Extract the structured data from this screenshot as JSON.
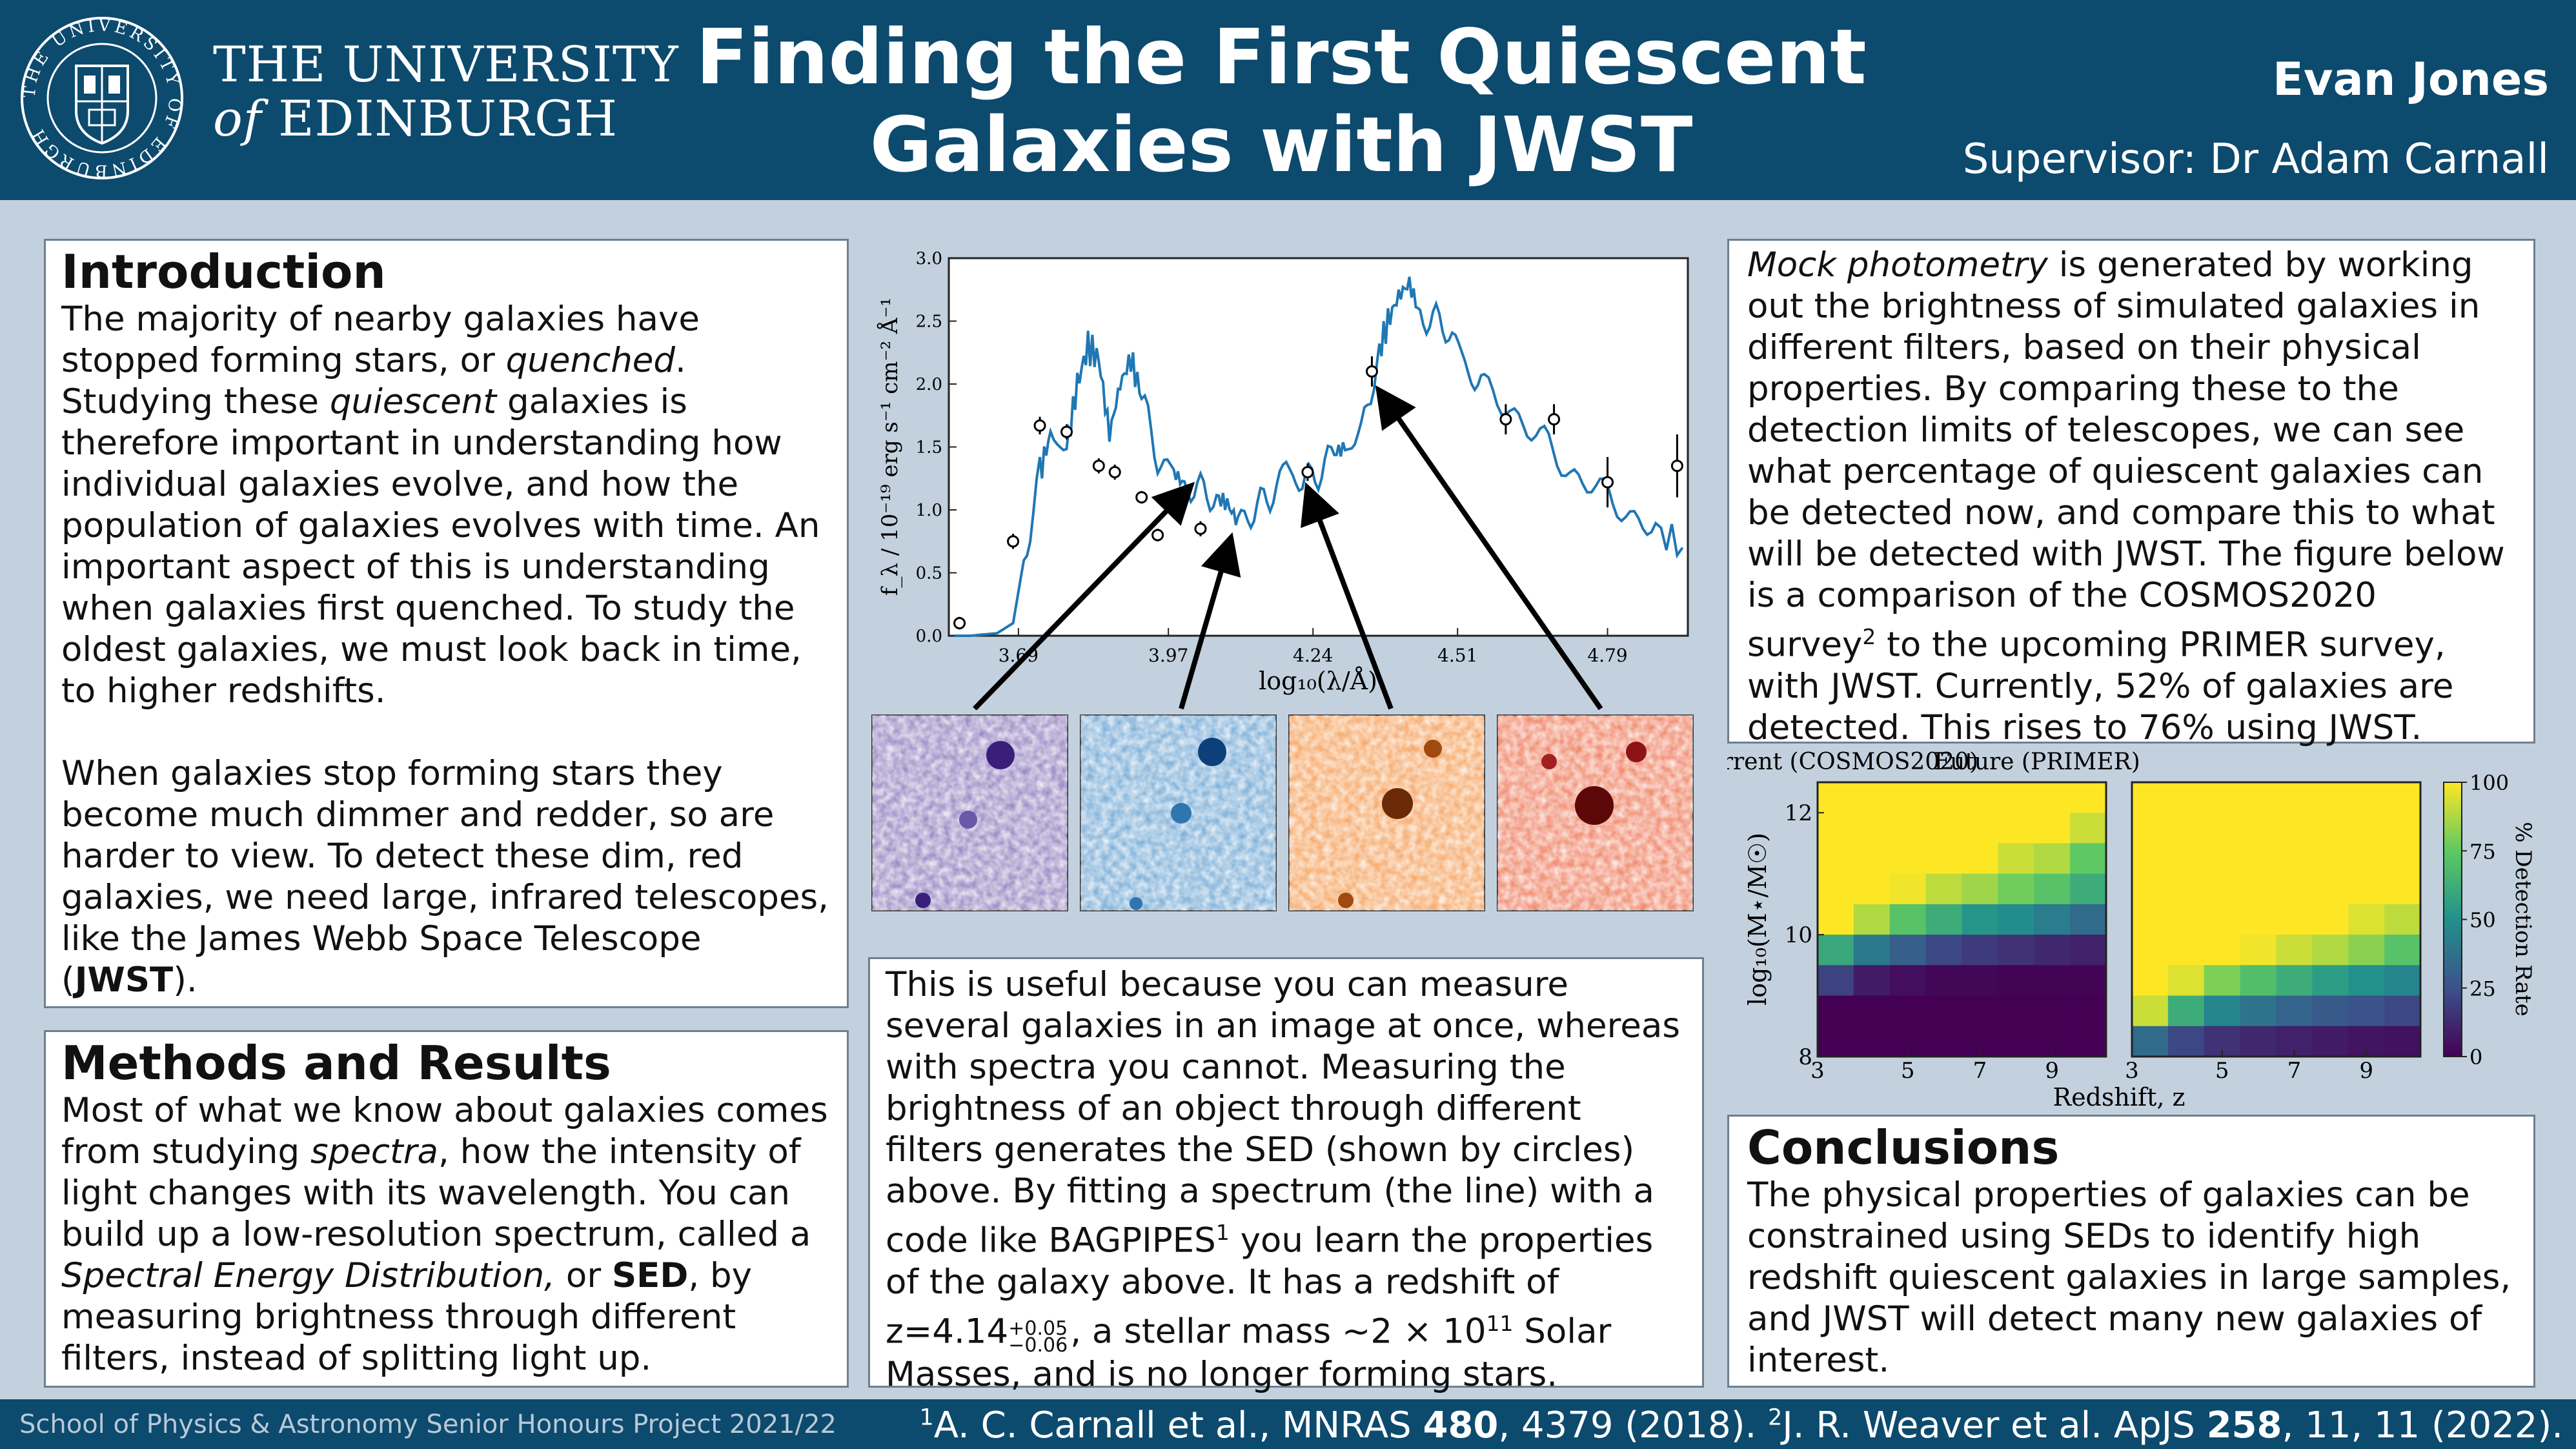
{
  "header": {
    "university_line1": "THE UNIVERSITY",
    "university_of": "of",
    "university_line2": "EDINBURGH",
    "crest_ring_text": "THE UNIVERSITY OF EDINBURGH",
    "title_line1": "Finding the First Quiescent",
    "title_line2": "Galaxies with JWST",
    "author": "Evan Jones",
    "supervisor": "Supervisor: Dr Adam Carnall"
  },
  "intro": {
    "heading": "Introduction",
    "p1_a": "The majority of nearby galaxies have stopped forming stars, or ",
    "p1_em1": "quenched",
    "p1_b": ". Studying these ",
    "p1_em2": "quiescent",
    "p1_c": " galaxies is therefore important in understanding how individual galaxies evolve, and how the population of galaxies evolves with time. An important aspect of this is understanding when galaxies first quenched. To study the oldest galaxies, we must look back in time, to higher redshifts.",
    "p2_a": "When galaxies stop forming stars they become much dimmer and redder, so are harder to view. To detect these dim, red galaxies, we need large, infrared telescopes, like the James Webb Space Telescope (",
    "p2_strong": "JWST",
    "p2_b": ")."
  },
  "methods": {
    "heading": "Methods and Results",
    "a": "Most of what we know about galaxies comes from studying ",
    "em1": "spectra",
    "b": ", how the intensity of light changes with its wavelength. You can build up a low-resolution spectrum, called a ",
    "em2": "Spectral Energy Distribution,",
    "c": " or ",
    "strong": "SED",
    "d": ", by measuring brightness through different filters, instead of splitting light up."
  },
  "useful": {
    "a": "This is useful because you can measure several galaxies in an image at once, whereas with spectra you cannot. Measuring the brightness of an object through different filters generates the SED (shown by circles) above. By fitting a spectrum (the line) with a code like BAGPIPES",
    "sup1": "1",
    "b": " you learn the properties of the galaxy above. It has a redshift of z=4.14",
    "z_up": "+0.05",
    "z_dn": "−0.06",
    "c": ", a stellar mass ∼2 × 10",
    "mass_exp": "11",
    "d": " Solar Masses, and is no longer forming stars."
  },
  "mock": {
    "em": "Mock photometry",
    "a": " is generated by working out the brightness of simulated galaxies in different filters, based on their physical properties. By comparing these to the detection limits of telescopes, we can see what percentage of quiescent galaxies can be detected now, and compare this to what will be detected with JWST. The figure below is a comparison of the COSMOS2020 survey",
    "sup2": "2",
    "b": " to the upcoming PRIMER survey, with JWST. Currently, 52% of galaxies are detected. This rises to 76% using JWST."
  },
  "conclusions": {
    "heading": "Conclusions",
    "text": "The physical properties of galaxies can be constrained using SEDs to identify high redshift quiescent galaxies in large samples, and JWST will detect many new galaxies of interest."
  },
  "footer": {
    "left": "School of Physics & Astronomy Senior Honours Project 2021/22",
    "ref1_sup": "1",
    "ref1_a": "A. C. Carnall et al., MNRAS ",
    "ref1_vol": "480",
    "ref1_b": ", 4379 (2018). ",
    "ref2_sup": "2",
    "ref2_a": "J. R. Weaver et al. ApJS ",
    "ref2_vol": "258",
    "ref2_b": ", 11, 11 (2022)."
  },
  "chart_data": [
    {
      "type": "line",
      "xlabel": "log₁₀(λ/Å)",
      "ylabel": "f_λ / 10⁻¹⁹ erg s⁻¹ cm⁻² Å⁻¹",
      "xlim": [
        3.56,
        4.94
      ],
      "ylim": [
        0.0,
        3.0
      ],
      "xticks": [
        "3.69",
        "3.97",
        "4.24",
        "4.51",
        "4.79"
      ],
      "yticks": [
        "0.0",
        "0.5",
        "1.0",
        "1.5",
        "2.0",
        "2.5",
        "3.0"
      ],
      "line_color": "#1f77b4",
      "series": [
        {
          "kind": "model_spectrum",
          "x": [
            3.57,
            3.6,
            3.65,
            3.68,
            3.7,
            3.73,
            3.75,
            3.78,
            3.8,
            3.82,
            3.84,
            3.86,
            3.88,
            3.9,
            3.92,
            3.95,
            3.98,
            4.0,
            4.03,
            4.06,
            4.08,
            4.1,
            4.13,
            4.16,
            4.19,
            4.22,
            4.25,
            4.28,
            4.3,
            4.33,
            4.36,
            4.38,
            4.4,
            4.42,
            4.44,
            4.47,
            4.5,
            4.53,
            4.56,
            4.6,
            4.64,
            4.68,
            4.72,
            4.76,
            4.8,
            4.84,
            4.88,
            4.93
          ],
          "y": [
            0.0,
            0.0,
            0.02,
            0.1,
            0.6,
            1.3,
            1.6,
            1.5,
            2.0,
            2.3,
            2.2,
            1.6,
            2.0,
            2.2,
            1.9,
            1.4,
            1.3,
            1.2,
            1.15,
            1.1,
            1.05,
            0.9,
            1.0,
            1.1,
            1.35,
            1.2,
            1.3,
            1.45,
            1.5,
            1.6,
            2.2,
            2.5,
            2.7,
            2.8,
            2.55,
            2.5,
            2.4,
            2.1,
            1.95,
            1.85,
            1.65,
            1.5,
            1.3,
            1.2,
            1.05,
            0.95,
            0.85,
            0.7
          ]
        },
        {
          "kind": "photometry",
          "x": [
            3.58,
            3.68,
            3.73,
            3.78,
            3.84,
            3.87,
            3.92,
            3.95,
            4.03,
            4.23,
            4.35,
            4.6,
            4.69,
            4.79,
            4.92
          ],
          "y": [
            0.1,
            0.75,
            1.67,
            1.62,
            1.35,
            1.3,
            1.1,
            0.8,
            0.85,
            1.3,
            2.1,
            1.72,
            1.72,
            1.22,
            1.35
          ],
          "yerr": [
            0.05,
            0.06,
            0.07,
            0.06,
            0.06,
            0.06,
            0.05,
            0.05,
            0.06,
            0.07,
            0.12,
            0.12,
            0.12,
            0.2,
            0.25
          ]
        }
      ]
    },
    {
      "type": "heatmap",
      "panels": [
        "Current (COSMOS2020)",
        "Future (PRIMER)"
      ],
      "xlabel": "Redshift, z",
      "ylabel": "log₁₀(M⋆/M☉)",
      "xticks": [
        "3",
        "5",
        "7",
        "9"
      ],
      "yticks": [
        "8",
        "10",
        "12"
      ],
      "colorbar_label": "% Detection Rate",
      "colorbar_ticks": [
        "0",
        "25",
        "50",
        "75",
        "100"
      ],
      "x": [
        3,
        4,
        5,
        6,
        7,
        8,
        9,
        10
      ],
      "y": [
        12.5,
        12,
        11.5,
        11,
        10.5,
        10,
        9.5,
        9,
        8.5
      ],
      "current": [
        [
          100,
          100,
          100,
          100,
          100,
          100,
          100,
          100
        ],
        [
          100,
          100,
          100,
          100,
          100,
          100,
          100,
          92
        ],
        [
          100,
          100,
          100,
          100,
          100,
          92,
          88,
          75
        ],
        [
          100,
          100,
          98,
          90,
          85,
          78,
          72,
          62
        ],
        [
          100,
          88,
          72,
          62,
          52,
          48,
          42,
          35
        ],
        [
          60,
          40,
          30,
          22,
          18,
          15,
          12,
          10
        ],
        [
          20,
          8,
          4,
          2,
          2,
          1,
          1,
          1
        ],
        [
          0,
          0,
          0,
          0,
          0,
          0,
          0,
          0
        ],
        [
          0,
          0,
          0,
          0,
          0,
          0,
          0,
          0
        ]
      ],
      "future": [
        [
          100,
          100,
          100,
          100,
          100,
          100,
          100,
          100
        ],
        [
          100,
          100,
          100,
          100,
          100,
          100,
          100,
          100
        ],
        [
          100,
          100,
          100,
          100,
          100,
          100,
          100,
          100
        ],
        [
          100,
          100,
          100,
          100,
          100,
          100,
          100,
          100
        ],
        [
          100,
          100,
          100,
          100,
          100,
          100,
          95,
          90
        ],
        [
          100,
          100,
          100,
          98,
          92,
          88,
          82,
          72
        ],
        [
          100,
          95,
          80,
          70,
          62,
          55,
          50,
          45
        ],
        [
          92,
          62,
          45,
          38,
          32,
          28,
          25,
          22
        ],
        [
          35,
          22,
          15,
          12,
          10,
          8,
          6,
          5
        ]
      ]
    }
  ]
}
